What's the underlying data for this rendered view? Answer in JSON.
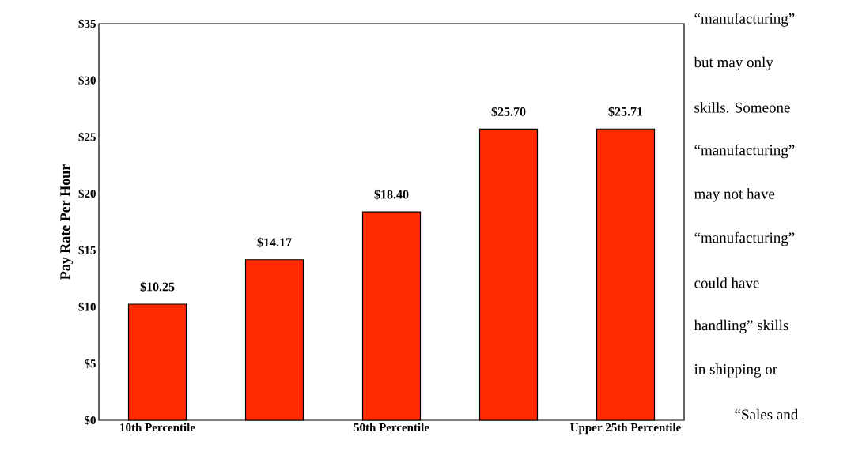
{
  "chart_data": {
    "type": "bar",
    "ylabel": "Pay Rate Per Hour",
    "categories": [
      "10th Percentile",
      null,
      "50th Percentile",
      null,
      "Upper 25th Percentile"
    ],
    "values": [
      10.25,
      14.17,
      18.4,
      25.7,
      25.71
    ],
    "value_labels": [
      "$10.25",
      "$14.17",
      "$18.40",
      "$25.70",
      "$25.71"
    ],
    "color": "#ff2a00",
    "ylim": [
      0,
      35
    ],
    "yticks": [
      {
        "value": 0,
        "label": "$0"
      },
      {
        "value": 5,
        "label": "$5"
      },
      {
        "value": 10,
        "label": "$10"
      },
      {
        "value": 15,
        "label": "$15"
      },
      {
        "value": 20,
        "label": "$20"
      },
      {
        "value": 25,
        "label": "$25"
      },
      {
        "value": 30,
        "label": "$30"
      },
      {
        "value": 35,
        "label": "$35"
      }
    ],
    "grid": false,
    "annotations": [
      "“manufacturing”",
      "but may only",
      "skills.  Someone",
      "“manufacturing”",
      "may not have",
      "“manufacturing”",
      "could have",
      "handling” skills",
      "in shipping or",
      "“Sales and"
    ]
  }
}
